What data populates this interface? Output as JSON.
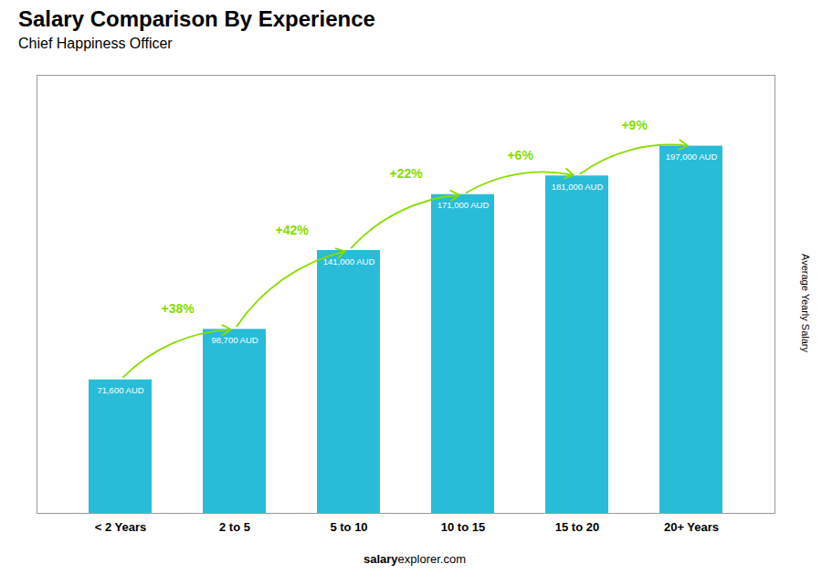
{
  "chart_data": {
    "type": "bar",
    "title": "Salary Comparison By Experience",
    "subtitle": "Chief Happiness Officer",
    "categories": [
      "< 2 Years",
      "2 to 5",
      "5 to 10",
      "10 to 15",
      "15 to 20",
      "20+ Years"
    ],
    "values": [
      71600,
      98700,
      141000,
      171000,
      181000,
      197000
    ],
    "value_labels": [
      "71,600 AUD",
      "98,700 AUD",
      "141,000 AUD",
      "171,000 AUD",
      "181,000 AUD",
      "197,000 AUD"
    ],
    "data_labels": true,
    "color": "#29bcd8",
    "ylabel": "Average Yearly Salary",
    "ylim": [
      0,
      235000
    ],
    "tick_labels": "x",
    "grid": false,
    "annotations": [
      {
        "text": "+38%",
        "color": "#88dd00"
      },
      {
        "text": "+42%",
        "color": "#88dd00"
      },
      {
        "text": "+22%",
        "color": "#88dd00"
      },
      {
        "text": "+6%",
        "color": "#88dd00"
      },
      {
        "text": "+9%",
        "color": "#88dd00"
      }
    ],
    "footer": [
      "salary",
      "explorer.com"
    ]
  }
}
